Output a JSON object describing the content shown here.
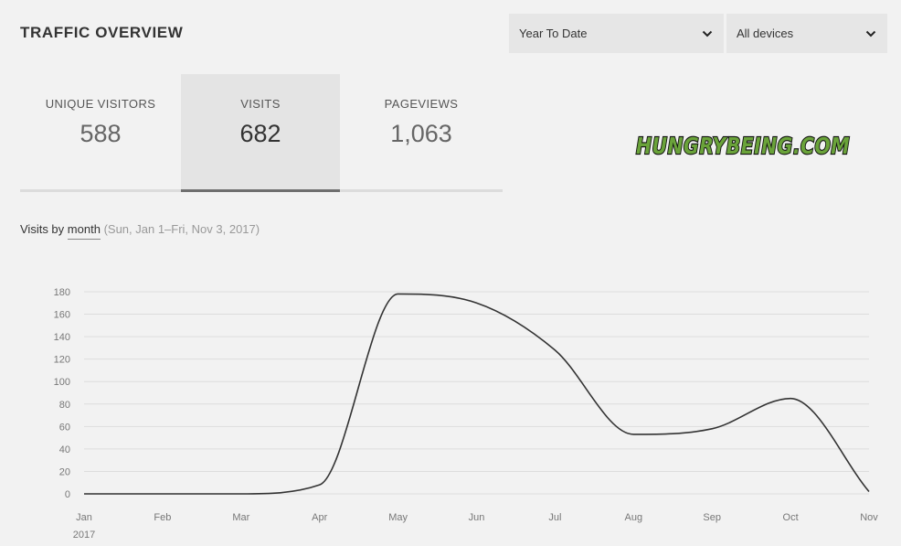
{
  "header": {
    "title": "TRAFFIC OVERVIEW",
    "date_range": "Year To Date",
    "device_filter": "All devices"
  },
  "metrics": [
    {
      "label": "UNIQUE VISITORS",
      "value": "588"
    },
    {
      "label": "VISITS",
      "value": "682"
    },
    {
      "label": "PAGEVIEWS",
      "value": "1,063"
    }
  ],
  "watermark": "HUNGRYBEING.COM",
  "subtitle": {
    "prefix": "Visits by",
    "period": "month",
    "range": "(Sun, Jan 1–Fri, Nov 3, 2017)"
  },
  "colors": {
    "line": "#333333",
    "grid": "#dddddd",
    "tick_text": "#777777",
    "logo_fill": "#6aa33a"
  },
  "chart_data": {
    "type": "line",
    "title": "",
    "xlabel": "",
    "ylabel": "",
    "categories": [
      "Jan",
      "Feb",
      "Mar",
      "Apr",
      "May",
      "Jun",
      "Jul",
      "Aug",
      "Sep",
      "Oct",
      "Nov"
    ],
    "year_label": "2017",
    "ylim": [
      0,
      180
    ],
    "yticks": [
      0,
      20,
      40,
      60,
      80,
      100,
      120,
      140,
      160,
      180
    ],
    "grid": true,
    "series": [
      {
        "values": [
          0,
          0,
          0,
          8,
          178,
          170,
          128,
          53,
          58,
          85,
          2
        ]
      }
    ]
  }
}
